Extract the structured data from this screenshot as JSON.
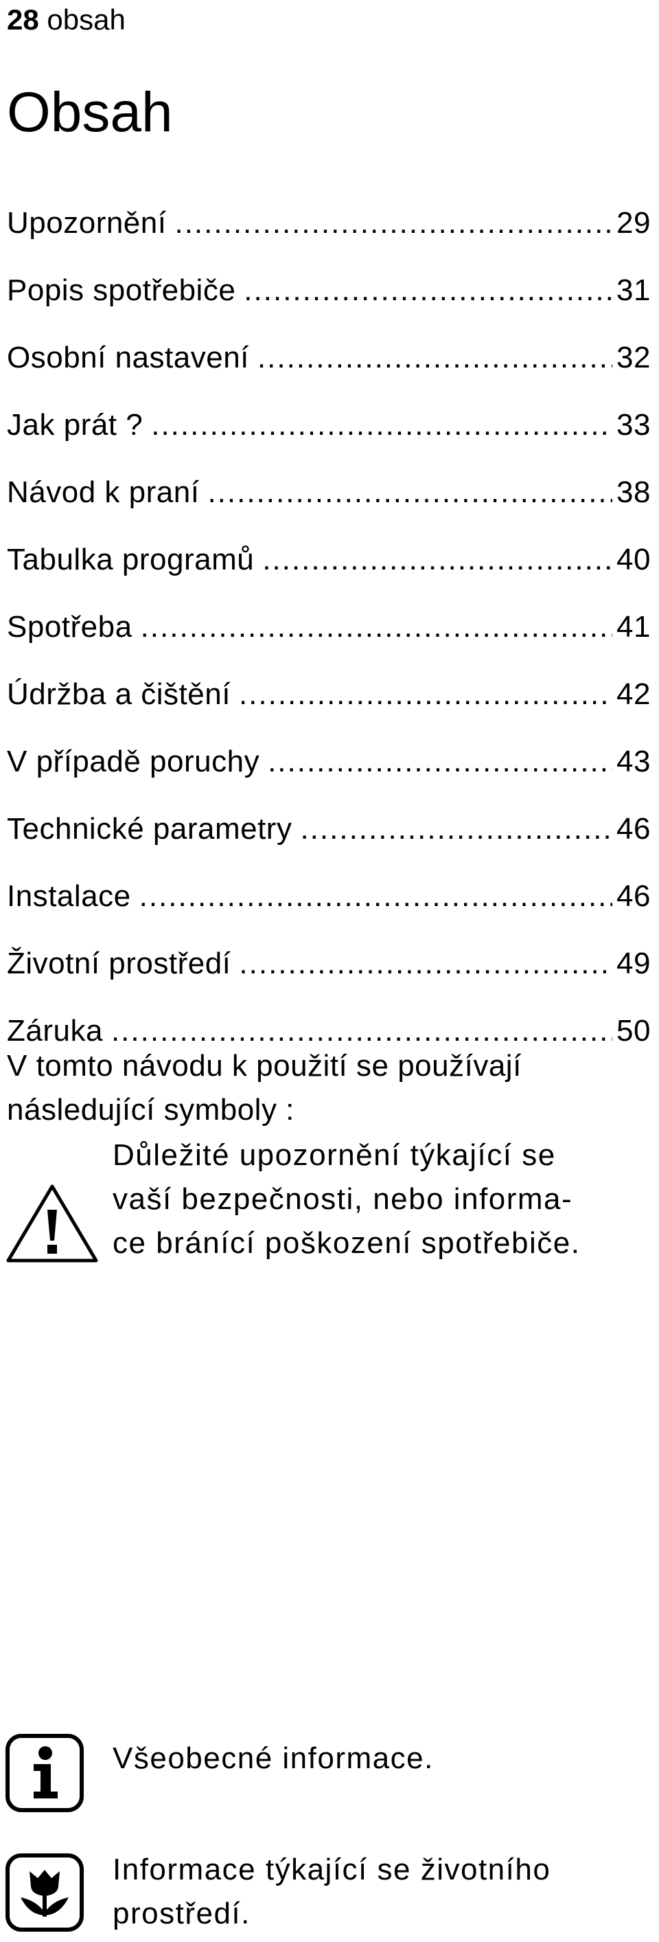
{
  "header": {
    "page_number": "28",
    "section": "obsah"
  },
  "title": "Obsah",
  "toc": [
    {
      "label": "Upozornění",
      "page": "29"
    },
    {
      "label": "Popis spotřebiče",
      "page": "31"
    },
    {
      "label": "Osobní nastavení",
      "page": "32"
    },
    {
      "label": "Jak prát ?",
      "page": "33"
    },
    {
      "label": "Návod k praní",
      "page": "38"
    },
    {
      "label": "Tabulka programů",
      "page": "40"
    },
    {
      "label": "Spotřeba",
      "page": "41"
    },
    {
      "label": "Údržba a čištění",
      "page": "42"
    },
    {
      "label": "V případě poruchy",
      "page": "43"
    },
    {
      "label": "Technické parametry",
      "page": "46"
    },
    {
      "label": "Instalace",
      "page": "46"
    },
    {
      "label": "Životní prostředí",
      "page": "49"
    },
    {
      "label": "Záruka",
      "page": "50"
    }
  ],
  "intro": "V tomto návodu k použití se používají následující symboly :",
  "symbols": [
    {
      "icon": "warning-triangle-icon",
      "lines": [
        "Důležité upozornění týkající se",
        "vaší bezpečnosti, nebo informa-",
        "ce bránící poškození spotřebiče."
      ]
    },
    {
      "icon": "info-icon",
      "lines": [
        "Všeobecné informace."
      ]
    },
    {
      "icon": "environment-flower-icon",
      "lines": [
        "Informace týkající se životního",
        "prostředí."
      ]
    }
  ]
}
